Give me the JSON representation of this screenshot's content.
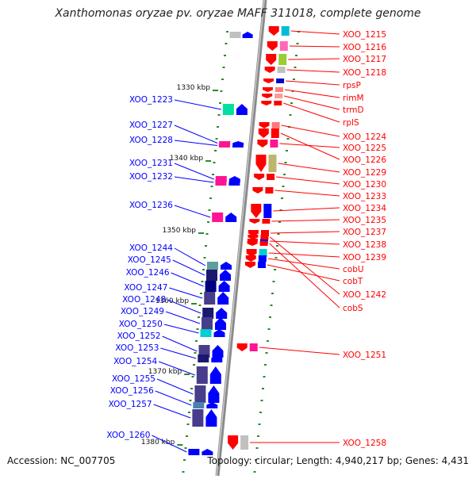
{
  "title": "Xanthomonas oryzae pv. oryzae MAFF 311018, complete genome",
  "footer": {
    "accession": "Accession: NC_007705",
    "info": "Topology: circular; Length: 4,940,217 bp; Genes: 4,431"
  },
  "colors": {
    "backbone": "#8a8a8a",
    "right_strand": "#ff0000",
    "left_strand": "#0000ff",
    "kbp_tick": "#2a8a2a"
  },
  "kbp_ticks": [
    {
      "label": "1330 kbp"
    },
    {
      "label": "1340 kbp"
    },
    {
      "label": "1350 kbp"
    },
    {
      "label": "1360 kbp"
    },
    {
      "label": "1370 kbp"
    },
    {
      "label": "1380 kbp"
    }
  ],
  "genes_right": [
    {
      "label": "XOO_1215"
    },
    {
      "label": "XOO_1216"
    },
    {
      "label": "XOO_1217"
    },
    {
      "label": "XOO_1218"
    },
    {
      "label": "rpsP"
    },
    {
      "label": "rimM"
    },
    {
      "label": "trmD"
    },
    {
      "label": "rplS"
    },
    {
      "label": "XOO_1224"
    },
    {
      "label": "XOO_1225"
    },
    {
      "label": "XOO_1226"
    },
    {
      "label": "XOO_1229"
    },
    {
      "label": "XOO_1230"
    },
    {
      "label": "XOO_1233"
    },
    {
      "label": "XOO_1234"
    },
    {
      "label": "XOO_1235"
    },
    {
      "label": "XOO_1237"
    },
    {
      "label": "XOO_1238"
    },
    {
      "label": "XOO_1239"
    },
    {
      "label": "cobU"
    },
    {
      "label": "cobT"
    },
    {
      "label": "XOO_1242"
    },
    {
      "label": "cobS"
    },
    {
      "label": "XOO_1251"
    },
    {
      "label": "XOO_1258"
    }
  ],
  "genes_left": [
    {
      "label": "XOO_1223"
    },
    {
      "label": "XOO_1227"
    },
    {
      "label": "XOO_1228"
    },
    {
      "label": "XOO_1231"
    },
    {
      "label": "XOO_1232"
    },
    {
      "label": "XOO_1236"
    },
    {
      "label": "XOO_1244"
    },
    {
      "label": "XOO_1245"
    },
    {
      "label": "XOO_1246"
    },
    {
      "label": "XOO_1247"
    },
    {
      "label": "XOO_1248"
    },
    {
      "label": "XOO_1249"
    },
    {
      "label": "XOO_1250"
    },
    {
      "label": "XOO_1252"
    },
    {
      "label": "XOO_1253"
    },
    {
      "label": "XOO_1254"
    },
    {
      "label": "XOO_1255"
    },
    {
      "label": "XOO_1256"
    },
    {
      "label": "XOO_1257"
    },
    {
      "label": "XOO_1260"
    }
  ]
}
